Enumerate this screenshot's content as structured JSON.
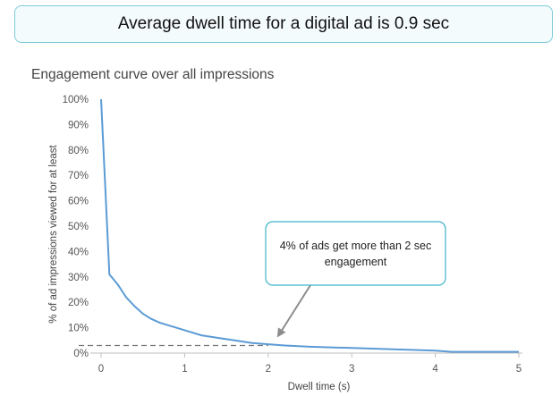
{
  "banner": {
    "text": "Average dwell time for a digital ad is 0.9 sec"
  },
  "chart_data": {
    "type": "line",
    "title": "Engagement curve over all impressions",
    "xlabel": "Dwell time (s)",
    "ylabel": "% of ad impressions viewed for at least",
    "xlim": [
      0,
      5
    ],
    "ylim": [
      0,
      100
    ],
    "x_ticks": [
      "0",
      "1",
      "2",
      "3",
      "4",
      "5"
    ],
    "y_ticks": [
      "0%",
      "10%",
      "20%",
      "30%",
      "40%",
      "50%",
      "60%",
      "70%",
      "80%",
      "90%",
      "100%"
    ],
    "grid": false,
    "series": [
      {
        "color": "#5b9bd5",
        "x": [
          0,
          0.1,
          0.2,
          0.3,
          0.4,
          0.5,
          0.6,
          0.7,
          0.8,
          0.9,
          1.0,
          1.2,
          1.4,
          1.6,
          1.8,
          2.0,
          2.2,
          2.5,
          3.0,
          3.5,
          4.0,
          4.2,
          5.0
        ],
        "y": [
          100,
          31,
          27,
          22,
          18.5,
          15.5,
          13.5,
          12,
          11,
          10,
          9,
          7,
          6,
          5,
          4,
          3.5,
          3,
          2.5,
          2,
          1.5,
          1,
          0.5,
          0.5
        ]
      }
    ],
    "reference": {
      "x": 2,
      "y": 3,
      "style": "dashed",
      "color": "#777777"
    },
    "annotation": {
      "lines": [
        "4% of ads get more than 2 sec",
        "engagement"
      ],
      "border_color": "#3fb3c9"
    }
  }
}
